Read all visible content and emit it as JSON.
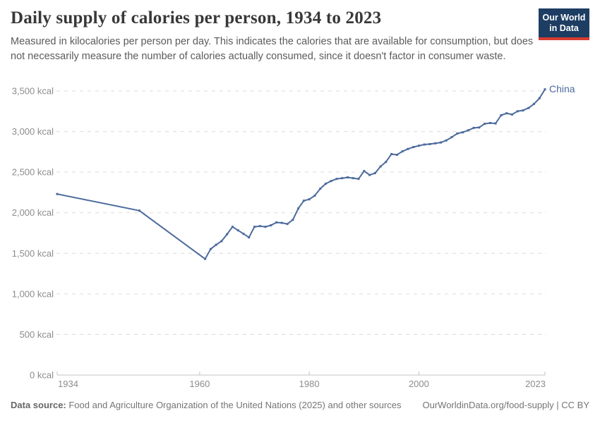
{
  "header": {
    "title": "Daily supply of calories per person, 1934 to 2023",
    "subtitle": "Measured in kilocalories per person per day. This indicates the calories that are available for consumption, but does not necessarily measure the number of calories actually consumed, since it doesn't factor in consumer waste."
  },
  "logo": {
    "line1": "Our World",
    "line2": "in Data",
    "bg_color": "#1d3d63",
    "bar_color": "#d93b31"
  },
  "chart_data": {
    "type": "line",
    "title": "Daily supply of calories per person, 1934 to 2023",
    "xlabel": "",
    "ylabel": "",
    "unit": "kcal",
    "xlim": [
      1934,
      2023
    ],
    "ylim": [
      0,
      3500
    ],
    "grid": "horizontal-dashed",
    "legend_position": "end-of-line",
    "xticks": [
      {
        "value": 1934,
        "label": "1934"
      },
      {
        "value": 1960,
        "label": "1960"
      },
      {
        "value": 1980,
        "label": "1980"
      },
      {
        "value": 2000,
        "label": "2000"
      },
      {
        "value": 2023,
        "label": "2023"
      }
    ],
    "yticks": [
      {
        "value": 0,
        "label": "0 kcal"
      },
      {
        "value": 500,
        "label": "500 kcal"
      },
      {
        "value": 1000,
        "label": "1,000 kcal"
      },
      {
        "value": 1500,
        "label": "1,500 kcal"
      },
      {
        "value": 2000,
        "label": "2,000 kcal"
      },
      {
        "value": 2500,
        "label": "2,500 kcal"
      },
      {
        "value": 3000,
        "label": "3,000 kcal"
      },
      {
        "value": 3500,
        "label": "3,500 kcal"
      }
    ],
    "series": [
      {
        "name": "China",
        "color": "#4C6A9C",
        "x": [
          1934,
          1949,
          1961,
          1962,
          1963,
          1964,
          1965,
          1966,
          1967,
          1968,
          1969,
          1970,
          1971,
          1972,
          1973,
          1974,
          1975,
          1976,
          1977,
          1978,
          1979,
          1980,
          1981,
          1982,
          1983,
          1984,
          1985,
          1986,
          1987,
          1988,
          1989,
          1990,
          1991,
          1992,
          1993,
          1994,
          1995,
          1996,
          1997,
          1998,
          1999,
          2000,
          2001,
          2002,
          2003,
          2004,
          2005,
          2006,
          2007,
          2008,
          2009,
          2010,
          2011,
          2012,
          2013,
          2014,
          2015,
          2016,
          2017,
          2018,
          2019,
          2020,
          2021,
          2022,
          2023
        ],
        "values": [
          2230,
          2025,
          1430,
          1552,
          1605,
          1650,
          1735,
          1826,
          1783,
          1740,
          1696,
          1826,
          1835,
          1826,
          1845,
          1880,
          1875,
          1861,
          1913,
          2052,
          2148,
          2165,
          2210,
          2296,
          2357,
          2391,
          2417,
          2426,
          2435,
          2426,
          2417,
          2513,
          2465,
          2487,
          2570,
          2626,
          2722,
          2713,
          2756,
          2785,
          2809,
          2825,
          2840,
          2845,
          2855,
          2865,
          2890,
          2930,
          2975,
          2990,
          3015,
          3045,
          3050,
          3095,
          3105,
          3100,
          3200,
          3225,
          3210,
          3250,
          3260,
          3290,
          3340,
          3410,
          3520
        ]
      }
    ]
  },
  "footer": {
    "source_label": "Data source:",
    "source_text": " Food and Agriculture Organization of the United Nations (2025) and other sources",
    "credit": "OurWorldinData.org/food-supply | CC BY"
  },
  "colors": {
    "line": "#4C6A9C",
    "grid": "#dcdcdc",
    "axis": "#c4c4c4",
    "axis_text": "#8c8c8c",
    "title_text": "#383838",
    "subtitle_text": "#5b5b5b"
  }
}
